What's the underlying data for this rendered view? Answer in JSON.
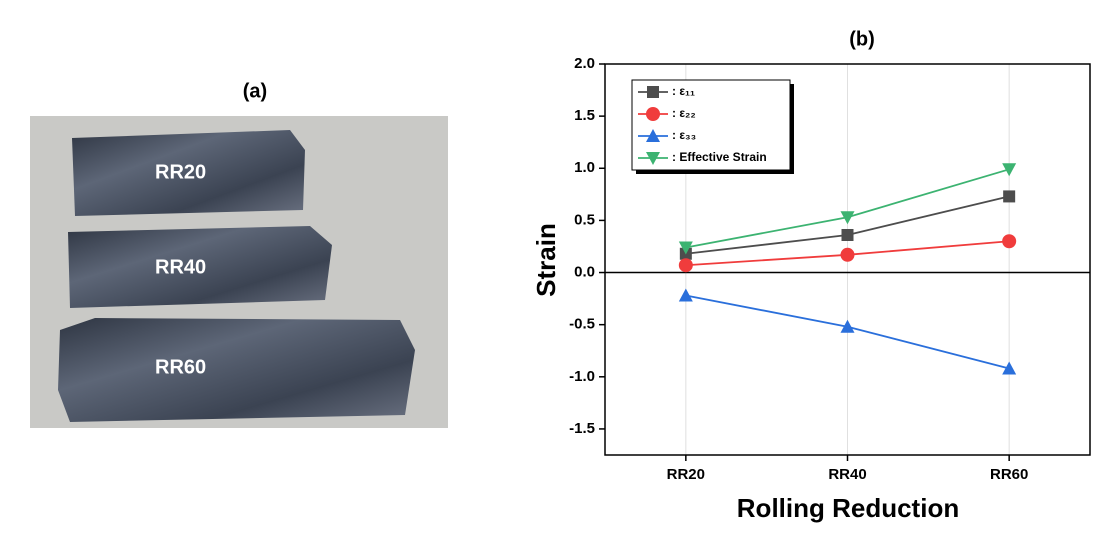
{
  "panel_a": {
    "label": "(a)",
    "samples": [
      "RR20",
      "RR40",
      "RR60"
    ]
  },
  "chart_data": {
    "type": "line",
    "title": "(b)",
    "x_label": "Rolling Reduction",
    "y_label": "Strain",
    "categories": [
      "RR20",
      "RR40",
      "RR60"
    ],
    "series": [
      {
        "name": ": ε₁₁",
        "color": "#4d4d4d",
        "marker": "square",
        "values": [
          0.18,
          0.36,
          0.73
        ]
      },
      {
        "name": ": ε₂₂",
        "color": "#f03c3c",
        "marker": "circle",
        "values": [
          0.07,
          0.17,
          0.3
        ]
      },
      {
        "name": ": ε₃₃",
        "color": "#2a6fdb",
        "marker": "triangle-up",
        "values": [
          -0.22,
          -0.52,
          -0.92
        ]
      },
      {
        "name": ": Effective Strain",
        "color": "#3cb371",
        "marker": "triangle-down",
        "values": [
          0.24,
          0.53,
          0.99
        ]
      }
    ],
    "ylim": [
      -1.75,
      2.0
    ],
    "yticks": [
      {
        "value": 2,
        "label": "2.0"
      },
      1.5,
      {
        "value": 1,
        "label": "1.0"
      },
      0.5,
      {
        "value": 0,
        "label": "0.0"
      },
      -0.5,
      {
        "value": -1,
        "label": "-1.0"
      },
      -1.5
    ],
    "grid": true,
    "legend": "upper-left"
  }
}
